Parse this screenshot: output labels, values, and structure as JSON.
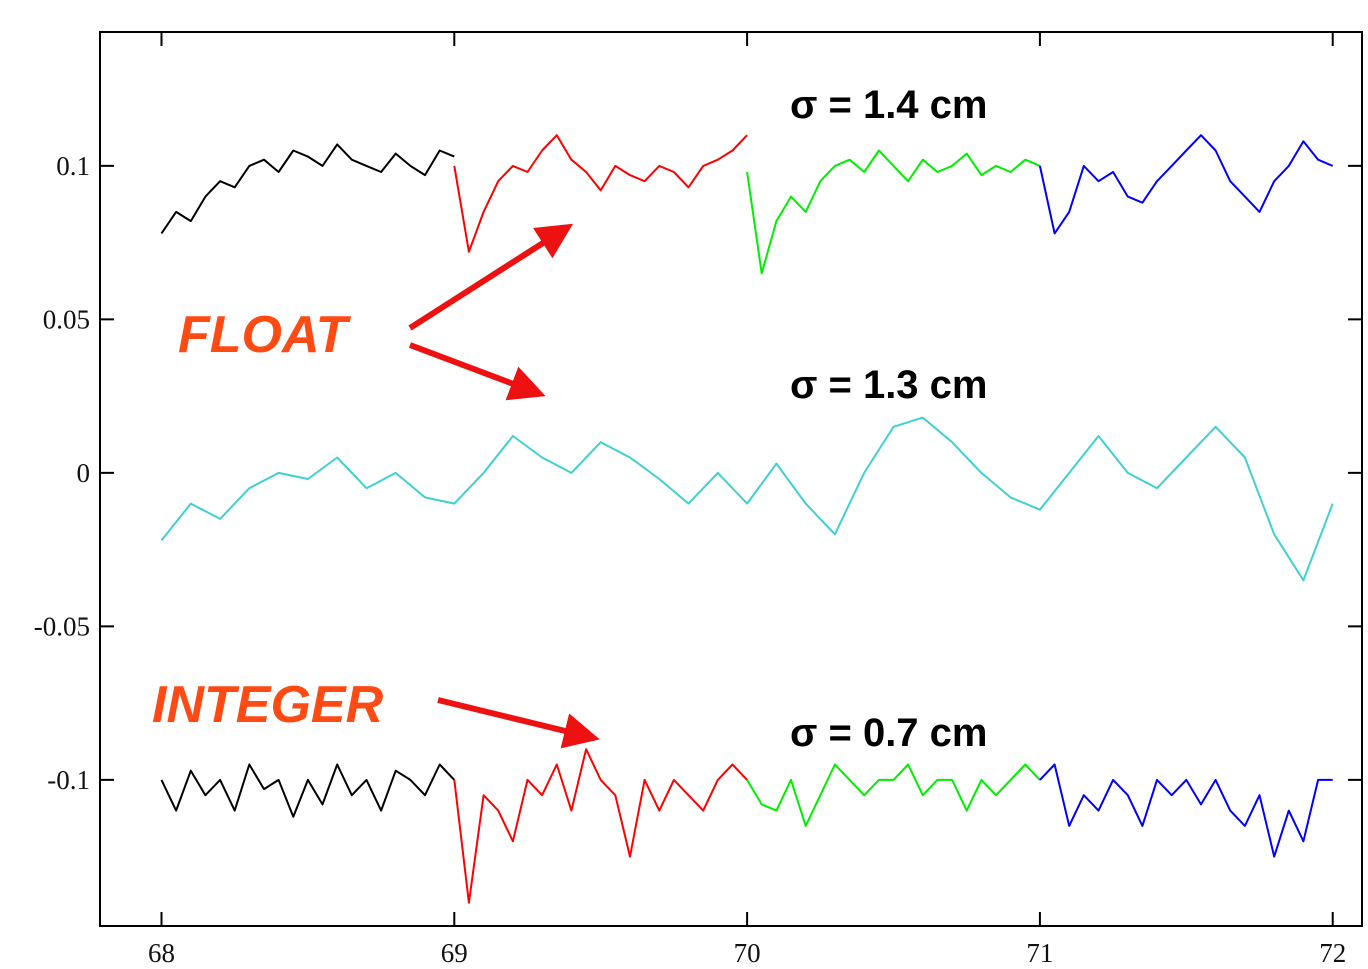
{
  "chart_data": {
    "type": "line",
    "xlim": [
      67.79,
      72.1
    ],
    "xticks": [
      68,
      69,
      70,
      71,
      72
    ],
    "ylim": [
      -0.1476,
      0.1436
    ],
    "yticks": [
      0.1,
      0.05,
      0,
      -0.05,
      -0.1
    ],
    "annotations": [
      "σ = 1.4 cm",
      "σ = 1.3 cm",
      "σ = 0.7 cm",
      "FLOAT",
      "INTEGER"
    ],
    "series": [
      {
        "color": "#000000",
        "x": [
          68,
          68.05,
          68.1,
          68.15,
          68.2,
          68.25,
          68.3,
          68.35,
          68.4,
          68.45,
          68.5,
          68.55,
          68.6,
          68.65,
          68.7,
          68.75,
          68.8,
          68.85,
          68.9,
          68.95,
          69
        ],
        "values": [
          0.078,
          0.085,
          0.082,
          0.09,
          0.095,
          0.093,
          0.1,
          0.102,
          0.098,
          0.105,
          0.103,
          0.1,
          0.107,
          0.102,
          0.1,
          0.098,
          0.104,
          0.1,
          0.097,
          0.105,
          0.103
        ]
      },
      {
        "color": "#ff0000",
        "x": [
          69,
          69.05,
          69.1,
          69.15,
          69.2,
          69.25,
          69.3,
          69.35,
          69.4,
          69.45,
          69.5,
          69.55,
          69.6,
          69.65,
          69.7,
          69.75,
          69.8,
          69.85,
          69.9,
          69.95,
          70
        ],
        "values": [
          0.1,
          0.072,
          0.085,
          0.095,
          0.1,
          0.098,
          0.105,
          0.11,
          0.102,
          0.098,
          0.092,
          0.1,
          0.097,
          0.095,
          0.1,
          0.098,
          0.093,
          0.1,
          0.102,
          0.105,
          0.11
        ]
      },
      {
        "color": "#00ee00",
        "x": [
          70,
          70.05,
          70.1,
          70.15,
          70.2,
          70.25,
          70.3,
          70.35,
          70.4,
          70.45,
          70.5,
          70.55,
          70.6,
          70.65,
          70.7,
          70.75,
          70.8,
          70.85,
          70.9,
          70.95,
          71
        ],
        "values": [
          0.098,
          0.065,
          0.082,
          0.09,
          0.085,
          0.095,
          0.1,
          0.102,
          0.098,
          0.105,
          0.1,
          0.095,
          0.102,
          0.098,
          0.1,
          0.104,
          0.097,
          0.1,
          0.098,
          0.102,
          0.1
        ]
      },
      {
        "color": "#0000ff",
        "x": [
          71,
          71.05,
          71.1,
          71.15,
          71.2,
          71.25,
          71.3,
          71.35,
          71.4,
          71.45,
          71.5,
          71.55,
          71.6,
          71.65,
          71.7,
          71.75,
          71.8,
          71.85,
          71.9,
          71.95,
          72
        ],
        "values": [
          0.1,
          0.078,
          0.085,
          0.1,
          0.095,
          0.098,
          0.09,
          0.088,
          0.095,
          0.1,
          0.105,
          0.11,
          0.105,
          0.095,
          0.09,
          0.085,
          0.095,
          0.1,
          0.108,
          0.102,
          0.1
        ]
      },
      {
        "color": "#40d0d0",
        "x": [
          68,
          68.1,
          68.2,
          68.3,
          68.4,
          68.5,
          68.6,
          68.7,
          68.8,
          68.9,
          69,
          69.1,
          69.2,
          69.3,
          69.4,
          69.5,
          69.6,
          69.7,
          69.8,
          69.9,
          70,
          70.1,
          70.2,
          70.3,
          70.4,
          70.5,
          70.6,
          70.7,
          70.8,
          70.9,
          71,
          71.1,
          71.2,
          71.3,
          71.4,
          71.5,
          71.6,
          71.7,
          71.8,
          71.9,
          72
        ],
        "values": [
          -0.022,
          -0.01,
          -0.015,
          -0.005,
          0,
          -0.002,
          0.005,
          -0.005,
          0,
          -0.008,
          -0.01,
          0,
          0.012,
          0.005,
          0,
          0.01,
          0.005,
          -0.002,
          -0.01,
          0,
          -0.01,
          0.003,
          -0.01,
          -0.02,
          0,
          0.015,
          0.018,
          0.01,
          0,
          -0.008,
          -0.012,
          0,
          0.012,
          0,
          -0.005,
          0.005,
          0.015,
          0.005,
          -0.02,
          -0.035,
          -0.01
        ]
      },
      {
        "color": "#000000",
        "x": [
          68,
          68.05,
          68.1,
          68.15,
          68.2,
          68.25,
          68.3,
          68.35,
          68.4,
          68.45,
          68.5,
          68.55,
          68.6,
          68.65,
          68.7,
          68.75,
          68.8,
          68.85,
          68.9,
          68.95,
          69
        ],
        "values": [
          -0.1,
          -0.11,
          -0.097,
          -0.105,
          -0.1,
          -0.11,
          -0.095,
          -0.103,
          -0.1,
          -0.112,
          -0.1,
          -0.108,
          -0.095,
          -0.105,
          -0.1,
          -0.11,
          -0.097,
          -0.1,
          -0.105,
          -0.095,
          -0.1
        ]
      },
      {
        "color": "#ff0000",
        "x": [
          69,
          69.05,
          69.1,
          69.15,
          69.2,
          69.25,
          69.3,
          69.35,
          69.4,
          69.45,
          69.5,
          69.55,
          69.6,
          69.65,
          69.7,
          69.75,
          69.8,
          69.85,
          69.9,
          69.95,
          70
        ],
        "values": [
          -0.1,
          -0.14,
          -0.105,
          -0.11,
          -0.12,
          -0.1,
          -0.105,
          -0.095,
          -0.11,
          -0.09,
          -0.1,
          -0.105,
          -0.125,
          -0.1,
          -0.11,
          -0.1,
          -0.105,
          -0.11,
          -0.1,
          -0.095,
          -0.1
        ]
      },
      {
        "color": "#00ee00",
        "x": [
          70,
          70.05,
          70.1,
          70.15,
          70.2,
          70.25,
          70.3,
          70.35,
          70.4,
          70.45,
          70.5,
          70.55,
          70.6,
          70.65,
          70.7,
          70.75,
          70.8,
          70.85,
          70.9,
          70.95,
          71
        ],
        "values": [
          -0.1,
          -0.108,
          -0.11,
          -0.1,
          -0.115,
          -0.105,
          -0.095,
          -0.1,
          -0.105,
          -0.1,
          -0.1,
          -0.095,
          -0.105,
          -0.1,
          -0.1,
          -0.11,
          -0.1,
          -0.105,
          -0.1,
          -0.095,
          -0.1
        ]
      },
      {
        "color": "#0000ff",
        "x": [
          71,
          71.05,
          71.1,
          71.15,
          71.2,
          71.25,
          71.3,
          71.35,
          71.4,
          71.45,
          71.5,
          71.55,
          71.6,
          71.65,
          71.7,
          71.75,
          71.8,
          71.85,
          71.9,
          71.95,
          72
        ],
        "values": [
          -0.1,
          -0.095,
          -0.115,
          -0.105,
          -0.11,
          -0.1,
          -0.105,
          -0.115,
          -0.1,
          -0.105,
          -0.1,
          -0.108,
          -0.1,
          -0.11,
          -0.115,
          -0.105,
          -0.125,
          -0.11,
          -0.12,
          -0.1,
          -0.1
        ]
      }
    ]
  }
}
